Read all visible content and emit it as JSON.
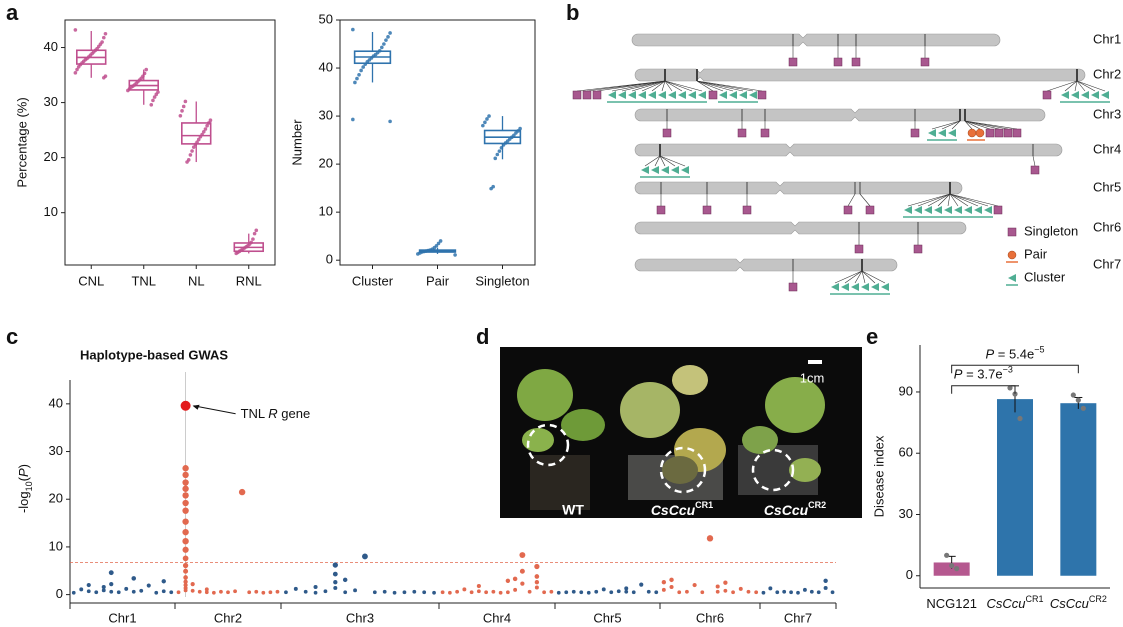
{
  "panel_labels": [
    "a",
    "b",
    "c",
    "d",
    "e"
  ],
  "chart_data": [
    {
      "type": "box",
      "ylabel": "Percentage (%)",
      "categories": [
        "CNL",
        "TNL",
        "NL",
        "RNL"
      ],
      "color": "#bf4f8e",
      "ylim": [
        0.5,
        45
      ],
      "yticks": [
        10,
        20,
        30,
        40
      ],
      "boxes": [
        {
          "min": 34.5,
          "q1": 37,
          "median": 38.2,
          "q3": 39.5,
          "max": 43
        },
        {
          "min": 29.6,
          "q1": 32.3,
          "median": 33.1,
          "q3": 34,
          "max": 36
        },
        {
          "min": 19.2,
          "q1": 22.5,
          "median": 24,
          "q3": 26.3,
          "max": 30.2
        },
        {
          "min": 2.6,
          "q1": 3,
          "median": 3.7,
          "q3": 4.5,
          "max": 6.2
        }
      ],
      "points": [
        [
          43.2,
          42.5,
          41.8,
          41,
          40.6,
          40.2,
          39.8,
          39.5,
          39.2,
          38.9,
          38.6,
          38.3,
          38,
          37.8,
          37.5,
          37.2,
          36.9,
          36.5,
          36,
          35.4,
          34.8,
          34.5
        ],
        [
          36,
          35.3,
          34.8,
          34.4,
          34.1,
          33.8,
          33.5,
          33.2,
          33,
          32.8,
          32.5,
          32.2,
          31.9,
          31.5,
          31,
          30.4,
          29.6
        ],
        [
          30.2,
          29.3,
          28.5,
          27.6,
          26.8,
          26.3,
          25.8,
          25.2,
          24.7,
          24.2,
          23.8,
          23.3,
          22.8,
          22.4,
          21.9,
          21.2,
          20.5,
          19.6,
          19.2
        ],
        [
          6.8,
          6.2,
          5.2,
          4.6,
          4.3,
          4,
          3.8,
          3.6,
          3.4,
          3.2,
          3,
          2.8,
          2.6
        ]
      ]
    },
    {
      "type": "box",
      "ylabel": "Number",
      "categories": [
        "Cluster",
        "Pair",
        "Singleton"
      ],
      "color": "#2f73ad",
      "ylim": [
        -1,
        50
      ],
      "yticks": [
        0,
        10,
        20,
        30,
        40,
        50
      ],
      "boxes": [
        {
          "min": 37,
          "q1": 41,
          "median": 42.3,
          "q3": 43.5,
          "max": 47.5
        },
        {
          "min": 1.3,
          "q1": 1.7,
          "median": 1.9,
          "q3": 2.1,
          "max": 2.6
        },
        {
          "min": 21,
          "q1": 24.3,
          "median": 25.6,
          "q3": 27,
          "max": 30
        }
      ],
      "points": [
        [
          48,
          47.3,
          46.5,
          45.8,
          45,
          44.3,
          43.6,
          43.2,
          42.8,
          42.5,
          42.1,
          41.7,
          41.3,
          40.8,
          40.2,
          39.5,
          38.6,
          37.8,
          37,
          29.3,
          28.9
        ],
        [
          4,
          3.5,
          3,
          2.6,
          2.3,
          2.1,
          2,
          1.9,
          1.8,
          1.7,
          1.5,
          1.3,
          1.1
        ],
        [
          30,
          29.4,
          28.7,
          28,
          27.4,
          26.9,
          26.5,
          26,
          25.6,
          25.2,
          24.8,
          24.4,
          24,
          23.4,
          22.7,
          22,
          21.2,
          15.3,
          14.9
        ]
      ]
    },
    {
      "type": "manhattan",
      "title": "Haplotype-based GWAS",
      "annotation": [
        "TNL ",
        "R",
        " gene"
      ],
      "ylabel": [
        "-log",
        "10",
        "(",
        "P",
        ")"
      ],
      "categories": [
        "Chr1",
        "Chr2",
        "Chr3",
        "Chr4",
        "Chr5",
        "Chr6",
        "Chr7"
      ],
      "colors": [
        "#2f5a8a",
        "#e2694f"
      ],
      "highlight_color": "#e31a1c",
      "threshold": 6.7,
      "threshold_color": "#e2694f",
      "ylim": [
        -0.5,
        45
      ],
      "yticks": [
        0,
        10,
        20,
        30,
        40
      ],
      "loci": [
        [
          [
            0.4
          ],
          [
            1.1
          ],
          [
            0.7,
            2.0
          ],
          [
            0.5
          ],
          [
            0.9,
            1.6
          ],
          [
            4.6,
            2.2,
            0.6
          ],
          [
            0.5
          ],
          [
            1.2
          ],
          [
            0.6,
            3.4
          ],
          [
            0.8
          ],
          [
            1.9
          ],
          [
            0.4
          ],
          [
            0.7,
            2.8
          ],
          [
            0.5
          ]
        ],
        [
          [
            0.5
          ],
          [
            39.6,
            26.5,
            25.1,
            23.5,
            22.2,
            20.8,
            19.2,
            17.6,
            15.3,
            13.1,
            11.2,
            9.4,
            7.6,
            6.1,
            4.9,
            3.6,
            2.7,
            2.0,
            1.4,
            0.9
          ],
          [
            0.8,
            2.2
          ],
          [
            0.6
          ],
          [
            0.5,
            1.1
          ],
          [
            0.4
          ],
          [
            0.6
          ],
          [
            0.5
          ],
          [
            0.7
          ],
          [
            21.5
          ],
          [
            0.5
          ],
          [
            0.6
          ],
          [
            0.4
          ],
          [
            0.5
          ],
          [
            0.6
          ]
        ],
        [
          [
            0.5
          ],
          [
            1.2
          ],
          [
            0.6
          ],
          [
            0.4,
            1.6
          ],
          [
            0.7
          ],
          [
            6.2,
            4.3,
            2.6,
            1.4
          ],
          [
            0.5,
            3.1
          ],
          [
            0.9
          ],
          [
            8.0
          ],
          [
            0.5
          ],
          [
            0.6
          ],
          [
            0.4
          ],
          [
            0.5
          ],
          [
            0.6
          ],
          [
            0.5
          ],
          [
            0.4
          ]
        ],
        [
          [
            0.5
          ],
          [
            0.4
          ],
          [
            0.6
          ],
          [
            1.1
          ],
          [
            0.5
          ],
          [
            0.7,
            1.8
          ],
          [
            0.5
          ],
          [
            0.6
          ],
          [
            0.4
          ],
          [
            0.5,
            2.9
          ],
          [
            1.0,
            3.3
          ],
          [
            8.3,
            4.9,
            2.3
          ],
          [
            0.6
          ],
          [
            5.9,
            3.8,
            2.6,
            1.5
          ],
          [
            0.5
          ],
          [
            0.6
          ]
        ],
        [
          [
            0.4
          ],
          [
            0.5
          ],
          [
            0.6
          ],
          [
            0.5
          ],
          [
            0.4
          ],
          [
            0.6
          ],
          [
            1.1
          ],
          [
            0.5
          ],
          [
            0.7
          ],
          [
            1.3,
            0.6
          ],
          [
            0.5
          ],
          [
            2.1
          ],
          [
            0.6
          ],
          [
            0.5
          ]
        ],
        [
          [
            1.0,
            2.6
          ],
          [
            1.6,
            3.1
          ],
          [
            0.5
          ],
          [
            0.6
          ],
          [
            2.0
          ],
          [
            0.5
          ],
          [
            11.8
          ],
          [
            0.6,
            1.7
          ],
          [
            0.8,
            2.5
          ],
          [
            0.5
          ],
          [
            1.2
          ],
          [
            0.6
          ],
          [
            0.5
          ]
        ],
        [
          [
            0.4
          ],
          [
            1.3
          ],
          [
            0.5
          ],
          [
            0.6
          ],
          [
            0.5
          ],
          [
            0.4
          ],
          [
            1.0
          ],
          [
            0.6
          ],
          [
            0.5
          ],
          [
            2.9,
            1.4
          ],
          [
            0.5
          ]
        ]
      ]
    },
    {
      "type": "bar",
      "ylabel": "Disease index",
      "categories": [
        "NCG121",
        "CsCcu",
        "CsCcu"
      ],
      "category_superscripts": [
        null,
        "CR1",
        "CR2"
      ],
      "values": [
        6.5,
        86.5,
        84.5
      ],
      "errors": [
        3,
        6.5,
        2.8
      ],
      "points": [
        [
          10,
          5,
          3.5
        ],
        [
          92,
          89,
          77
        ],
        [
          88.5,
          86,
          82
        ]
      ],
      "colors": [
        "#b5588f",
        "#2e74ab",
        "#2e74ab"
      ],
      "ylim": [
        -6,
        113
      ],
      "yticks": [
        0,
        30,
        60,
        90
      ],
      "annotations": [
        [
          "P",
          " = 3.7e",
          "−3"
        ],
        [
          "P",
          " = 5.4e",
          "−5"
        ]
      ]
    }
  ],
  "diagram": {
    "chromosomes": [
      "Chr1",
      "Chr2",
      "Chr3",
      "Chr4",
      "Chr5",
      "Chr6",
      "Chr7"
    ],
    "legend": [
      "Singleton",
      "Pair",
      "Cluster"
    ],
    "colors": {
      "singleton": "#a8588f",
      "pair": "#e8703a",
      "cluster": "#4fae93"
    }
  },
  "photo": {
    "labels": [
      "WT",
      [
        "CsCcu",
        "CR1"
      ],
      [
        "CsCcu",
        "CR2"
      ]
    ],
    "scale": "1cm"
  }
}
